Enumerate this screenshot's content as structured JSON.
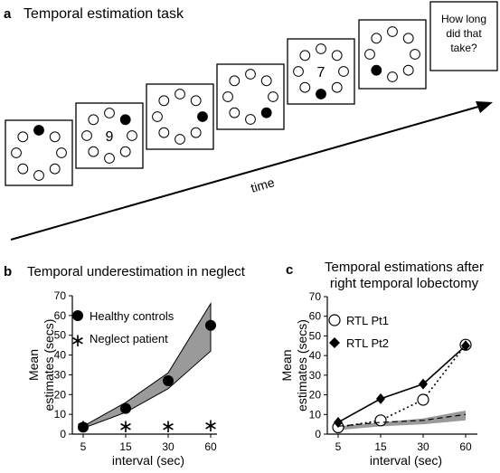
{
  "panel_a": {
    "letter": "a",
    "title": "Temporal estimation task",
    "time_label": "time",
    "frames": [
      {
        "digit": "",
        "dot": 0
      },
      {
        "digit": "9",
        "dot": 1
      },
      {
        "digit": "",
        "dot": 2
      },
      {
        "digit": "",
        "dot": 3
      },
      {
        "digit": "7",
        "dot": 4
      },
      {
        "digit": "",
        "dot": 5
      }
    ],
    "question": [
      "How long",
      "did that",
      "take?"
    ]
  },
  "panel_b": {
    "letter": "b",
    "title": "Temporal underestimation in neglect"
  },
  "panel_c": {
    "letter": "c",
    "title": [
      "Temporal estimations after",
      "right temporal lobectomy"
    ]
  },
  "chart_data": [
    {
      "type": "line",
      "panel": "b",
      "title": "Temporal underestimation in neglect",
      "xlabel": "interval (sec)",
      "ylabel": [
        "Mean",
        "estimates (secs)"
      ],
      "categories": [
        "5",
        "15",
        "30",
        "60"
      ],
      "ylim": [
        0,
        70
      ],
      "yticks": [
        0,
        10,
        20,
        30,
        40,
        50,
        60,
        70
      ],
      "legend": [
        {
          "marker": "filled-circle",
          "label": "Healthy controls"
        },
        {
          "marker": "asterisk",
          "label": "Neglect patient"
        }
      ],
      "series": [
        {
          "name": "Healthy controls",
          "marker": "filled-circle",
          "values": [
            3.5,
            13,
            27,
            55
          ]
        },
        {
          "name": "Neglect patient",
          "marker": "asterisk",
          "values": [
            5,
            5,
            5,
            5.5
          ]
        }
      ],
      "band": {
        "lower": [
          3,
          11,
          23,
          42
        ],
        "upper": [
          4,
          16,
          31,
          66
        ]
      },
      "grid": false
    },
    {
      "type": "line",
      "panel": "c",
      "title": "Temporal estimations after right temporal lobectomy",
      "xlabel": "interval (sec)",
      "ylabel": [
        "Mean",
        "estimates (secs)"
      ],
      "categories": [
        "5",
        "15",
        "30",
        "60"
      ],
      "ylim": [
        0,
        70
      ],
      "yticks": [
        0,
        10,
        20,
        30,
        40,
        50,
        60,
        70
      ],
      "legend": [
        {
          "marker": "open-circle",
          "label": "RTL Pt1"
        },
        {
          "marker": "filled-diamond",
          "label": "RTL Pt2"
        }
      ],
      "series": [
        {
          "name": "RTL Pt1",
          "marker": "open-circle",
          "line": "dotted",
          "values": [
            3.5,
            7,
            17.5,
            45.5
          ]
        },
        {
          "name": "RTL Pt2",
          "marker": "filled-diamond",
          "line": "solid",
          "values": [
            6,
            18,
            25.5,
            45
          ]
        },
        {
          "marker": "none",
          "line": "dashed",
          "values": [
            4,
            6,
            7,
            10
          ]
        }
      ],
      "band": {
        "lower": [
          2,
          4,
          5,
          7
        ],
        "upper": [
          4,
          6,
          8,
          12
        ]
      },
      "grid": false
    }
  ]
}
